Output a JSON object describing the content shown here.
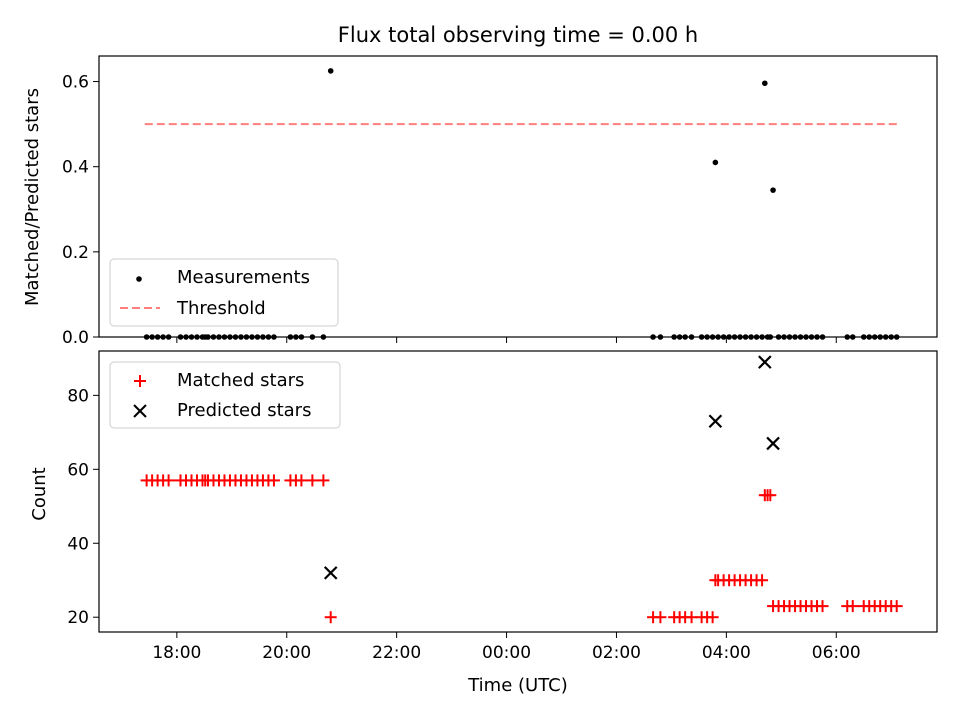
{
  "title": "Flux total observing time = 0.00 h",
  "top": {
    "ylabel": "Matched/Predicted stars",
    "ylim": [
      0,
      0.66
    ],
    "yticks": [
      "0.0",
      "0.2",
      "0.4",
      "0.6"
    ],
    "legend": {
      "placement": "lower-left",
      "entries": [
        "Measurements",
        "Threshold"
      ]
    },
    "threshold": {
      "value": 0.5,
      "x_start": "17:25",
      "x_end": "07:08",
      "color": "#ff7f7f"
    }
  },
  "bottom": {
    "ylabel": "Count",
    "ylim": [
      16,
      92
    ],
    "yticks": [
      "20",
      "40",
      "60",
      "80"
    ],
    "legend": {
      "placement": "upper-left",
      "entries": [
        "Matched stars",
        "Predicted stars"
      ]
    },
    "matched_color": "#ff0000",
    "predicted_color": "#000000"
  },
  "xaxis": {
    "label": "Time (UTC)",
    "xlim": [
      "16:35",
      "07:50"
    ],
    "ticks": [
      "18:00",
      "20:00",
      "22:00",
      "00:00",
      "02:00",
      "04:00",
      "06:00"
    ]
  },
  "chart_data": {
    "type": "scatter",
    "x": [
      "17:27",
      "17:33",
      "17:39",
      "17:45",
      "17:51",
      "18:04",
      "18:10",
      "18:16",
      "18:22",
      "18:28",
      "18:31",
      "18:34",
      "18:40",
      "18:46",
      "18:52",
      "18:58",
      "19:04",
      "19:10",
      "19:16",
      "19:22",
      "19:28",
      "19:34",
      "19:40",
      "19:46",
      "20:04",
      "20:10",
      "20:16",
      "20:28",
      "20:40",
      "20:48",
      "02:40",
      "02:48",
      "03:03",
      "03:09",
      "03:15",
      "03:22",
      "03:33",
      "03:39",
      "03:45",
      "03:48",
      "03:51",
      "03:57",
      "04:03",
      "04:09",
      "04:15",
      "04:21",
      "04:27",
      "04:33",
      "04:39",
      "04:42",
      "04:45",
      "04:48",
      "04:51",
      "04:57",
      "05:03",
      "05:09",
      "05:15",
      "05:21",
      "05:27",
      "05:33",
      "05:39",
      "05:45",
      "06:12",
      "06:18",
      "06:30",
      "06:36",
      "06:42",
      "06:48",
      "06:54",
      "07:00",
      "07:06"
    ],
    "series": [
      {
        "name": "Measurements",
        "values": [
          0,
          0,
          0,
          0,
          0,
          0,
          0,
          0,
          0,
          0,
          0,
          0,
          0,
          0,
          0,
          0,
          0,
          0,
          0,
          0,
          0,
          0,
          0,
          0,
          0,
          0,
          0,
          0,
          0,
          0.625,
          0,
          0,
          0,
          0,
          0,
          0,
          0,
          0,
          0,
          0.41,
          0,
          0,
          0,
          0,
          0,
          0,
          0,
          0,
          0,
          0.596,
          0,
          0,
          0.345,
          0,
          0,
          0,
          0,
          0,
          0,
          0,
          0,
          0,
          0,
          0,
          0,
          0,
          0,
          0,
          0,
          0,
          0
        ]
      },
      {
        "name": "Matched stars",
        "values": [
          57,
          57,
          57,
          57,
          57,
          57,
          57,
          57,
          57,
          57,
          57,
          57,
          57,
          57,
          57,
          57,
          57,
          57,
          57,
          57,
          57,
          57,
          57,
          57,
          57,
          57,
          57,
          57,
          57,
          20,
          20,
          20,
          20,
          20,
          20,
          20,
          20,
          20,
          20,
          30,
          30,
          30,
          30,
          30,
          30,
          30,
          30,
          30,
          30,
          53,
          53,
          53,
          23,
          23,
          23,
          23,
          23,
          23,
          23,
          23,
          23,
          23,
          23,
          23,
          23,
          23,
          23,
          23,
          23,
          23,
          23
        ]
      },
      {
        "name": "Predicted stars",
        "values": [
          null,
          null,
          null,
          null,
          null,
          null,
          null,
          null,
          null,
          null,
          null,
          null,
          null,
          null,
          null,
          null,
          null,
          null,
          null,
          null,
          null,
          null,
          null,
          null,
          null,
          null,
          null,
          null,
          null,
          32,
          null,
          null,
          null,
          null,
          null,
          null,
          null,
          null,
          null,
          73,
          null,
          null,
          null,
          null,
          null,
          null,
          null,
          null,
          null,
          89,
          null,
          null,
          67,
          null,
          null,
          null,
          null,
          null,
          null,
          null,
          null,
          null,
          null,
          null,
          null,
          null,
          null,
          null,
          null,
          null,
          null
        ]
      }
    ]
  }
}
